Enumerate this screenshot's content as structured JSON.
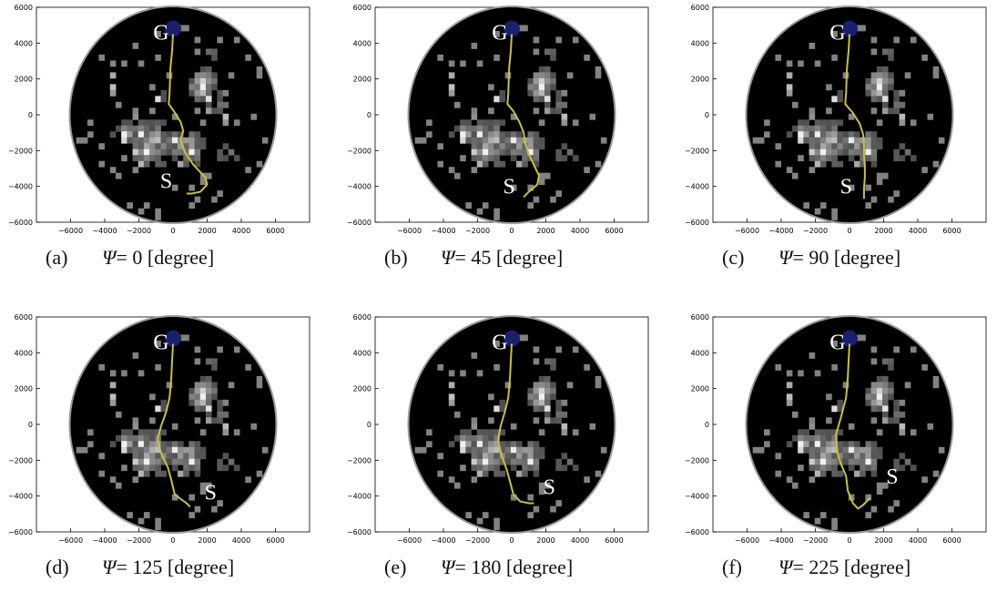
{
  "axes": {
    "x_ticks": [
      "-6000",
      "-4000",
      "-2000",
      "0",
      "2000",
      "4000",
      "6000"
    ],
    "y_ticks": [
      "6000",
      "4000",
      "2000",
      "0",
      "-2000",
      "-4000",
      "-6000"
    ]
  },
  "markers": {
    "goal": "G",
    "start": "S"
  },
  "colors": {
    "map_background": "#000000",
    "path": "#c9c23a",
    "goal_blob": "#1a1f6e",
    "terrain_bright": "#e6e6e6"
  },
  "panels": [
    {
      "letter": "(a)",
      "psi_symbol": "Ψ",
      "eq": "= 0 [degree]"
    },
    {
      "letter": "(b)",
      "psi_symbol": "Ψ",
      "eq": "= 45 [degree]"
    },
    {
      "letter": "(c)",
      "psi_symbol": "Ψ",
      "eq": "= 90 [degree]"
    },
    {
      "letter": "(d)",
      "psi_symbol": "Ψ",
      "eq": "= 125 [degree]"
    },
    {
      "letter": "(e)",
      "psi_symbol": "Ψ",
      "eq": "= 180 [degree]"
    },
    {
      "letter": "(f)",
      "psi_symbol": "Ψ",
      "eq": "= 225 [degree]"
    }
  ],
  "paths": [
    [
      [
        0,
        4500
      ],
      [
        -50,
        3600
      ],
      [
        -150,
        2600
      ],
      [
        -200,
        1200
      ],
      [
        -250,
        600
      ],
      [
        50,
        200
      ],
      [
        450,
        -400
      ],
      [
        600,
        -900
      ],
      [
        450,
        -1400
      ],
      [
        700,
        -2100
      ],
      [
        1200,
        -2800
      ],
      [
        1900,
        -3500
      ],
      [
        2000,
        -3900
      ],
      [
        1600,
        -4300
      ],
      [
        1100,
        -4400
      ],
      [
        800,
        -4400
      ]
    ],
    [
      [
        0,
        4500
      ],
      [
        -50,
        3600
      ],
      [
        -150,
        2600
      ],
      [
        -200,
        1200
      ],
      [
        -250,
        600
      ],
      [
        100,
        200
      ],
      [
        450,
        -400
      ],
      [
        700,
        -1000
      ],
      [
        800,
        -1600
      ],
      [
        1000,
        -2200
      ],
      [
        1300,
        -2800
      ],
      [
        1600,
        -3400
      ],
      [
        1500,
        -3900
      ],
      [
        1000,
        -4300
      ],
      [
        700,
        -4600
      ]
    ],
    [
      [
        0,
        4500
      ],
      [
        -50,
        3600
      ],
      [
        -150,
        2600
      ],
      [
        -200,
        1200
      ],
      [
        -250,
        600
      ],
      [
        200,
        100
      ],
      [
        600,
        -500
      ],
      [
        800,
        -1100
      ],
      [
        850,
        -1700
      ],
      [
        850,
        -2300
      ],
      [
        900,
        -2900
      ],
      [
        900,
        -3500
      ],
      [
        850,
        -4100
      ],
      [
        850,
        -4700
      ]
    ],
    [
      [
        0,
        4500
      ],
      [
        -50,
        3600
      ],
      [
        -100,
        2600
      ],
      [
        -200,
        1500
      ],
      [
        -400,
        700
      ],
      [
        -700,
        -100
      ],
      [
        -900,
        -800
      ],
      [
        -700,
        -1600
      ],
      [
        -300,
        -2400
      ],
      [
        -100,
        -3100
      ],
      [
        100,
        -3900
      ],
      [
        500,
        -4200
      ],
      [
        800,
        -4400
      ],
      [
        1000,
        -4600
      ]
    ],
    [
      [
        0,
        4500
      ],
      [
        -50,
        3600
      ],
      [
        -100,
        2600
      ],
      [
        -200,
        1500
      ],
      [
        -400,
        700
      ],
      [
        -650,
        -100
      ],
      [
        -800,
        -900
      ],
      [
        -600,
        -1700
      ],
      [
        -300,
        -2500
      ],
      [
        -100,
        -3200
      ],
      [
        100,
        -3900
      ],
      [
        500,
        -4300
      ],
      [
        1000,
        -4400
      ],
      [
        1300,
        -4400
      ]
    ],
    [
      [
        0,
        4500
      ],
      [
        -50,
        3600
      ],
      [
        -100,
        2600
      ],
      [
        -200,
        1500
      ],
      [
        -500,
        400
      ],
      [
        -800,
        -600
      ],
      [
        -700,
        -1600
      ],
      [
        -500,
        -2200
      ],
      [
        -200,
        -2900
      ],
      [
        -100,
        -3700
      ],
      [
        200,
        -4400
      ],
      [
        500,
        -4700
      ],
      [
        800,
        -4500
      ],
      [
        1200,
        -4100
      ]
    ]
  ],
  "start_label_pos": [
    [
      -400,
      -4100
    ],
    [
      -150,
      -4400
    ],
    [
      -200,
      -4400
    ],
    [
      2200,
      -4200
    ],
    [
      2200,
      -3900
    ],
    [
      2500,
      -3300
    ]
  ]
}
